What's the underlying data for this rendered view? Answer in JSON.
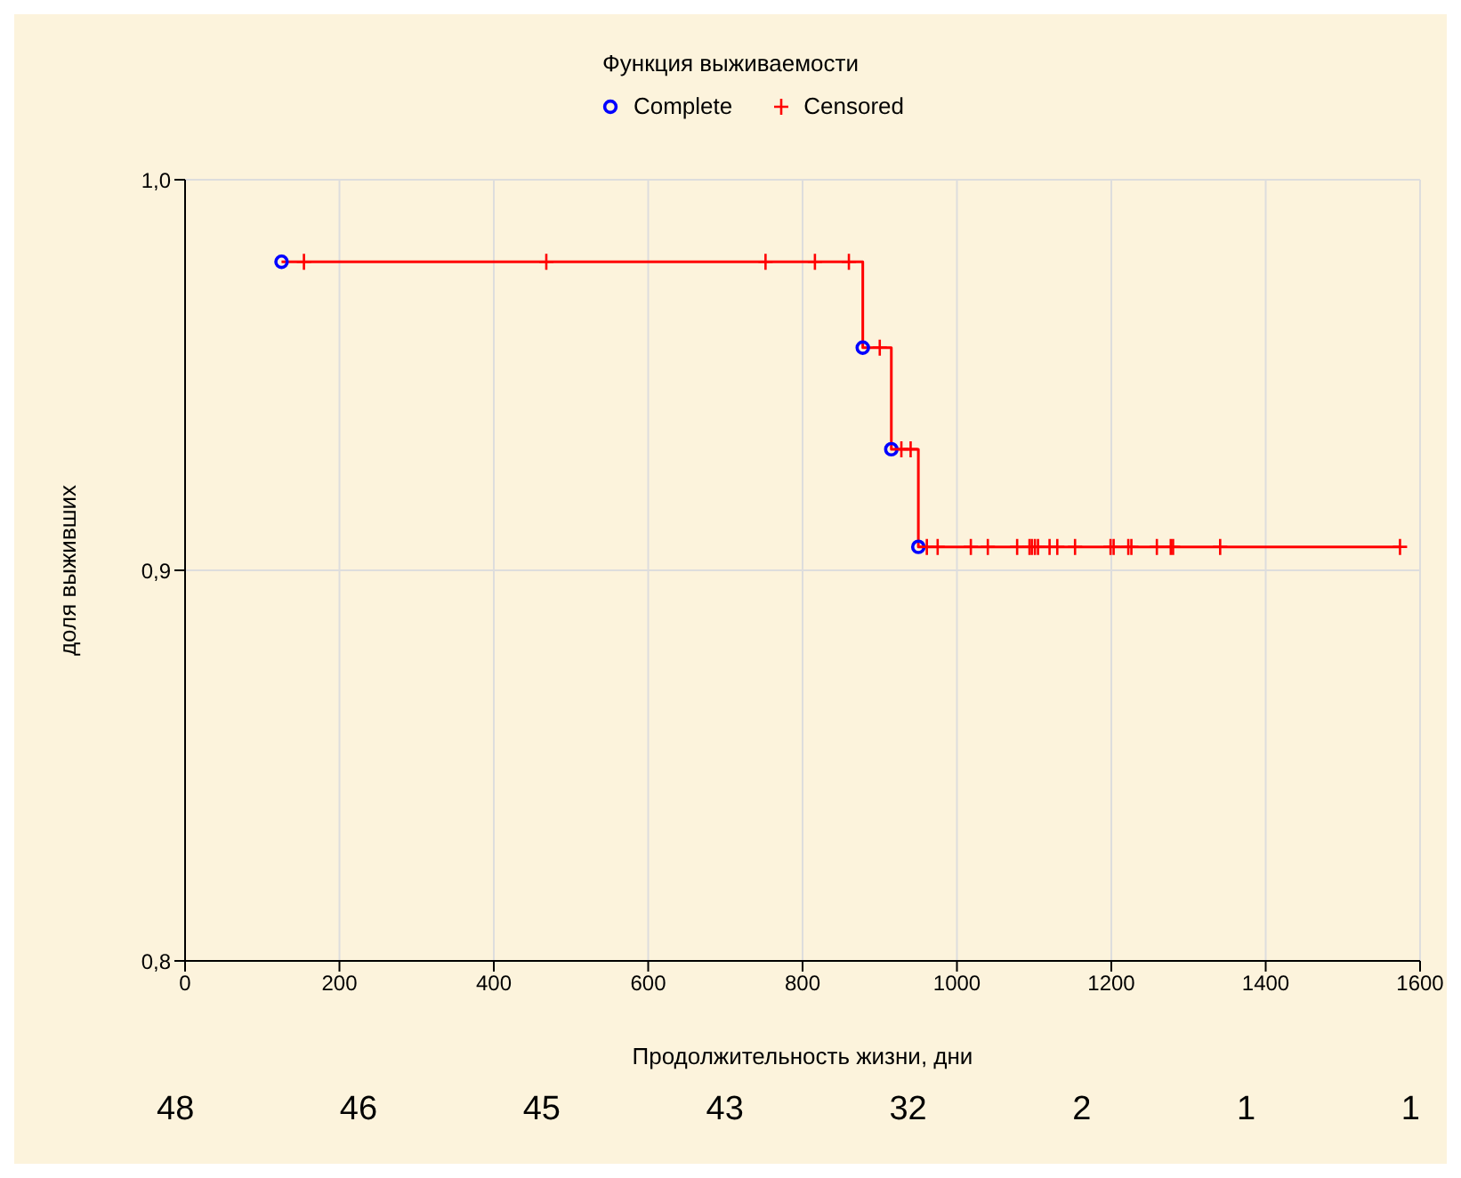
{
  "chart_data": {
    "type": "scatter",
    "title": "Функция выживаемости",
    "xlabel": "Продолжительность жизни, дни",
    "ylabel": "доля выживших",
    "xlim": [
      0,
      1600
    ],
    "xticks": [
      0,
      200,
      400,
      600,
      800,
      1000,
      1200,
      1400,
      1600
    ],
    "ylim": [
      0.8,
      1.0
    ],
    "yticks": [
      {
        "value": 0.8,
        "label": "0,8"
      },
      {
        "value": 0.9,
        "label": "0,9"
      },
      {
        "value": 1.0,
        "label": "1,0"
      }
    ],
    "grid": true,
    "legend": "top",
    "annotations": [
      "48",
      "46",
      "45",
      "43",
      "32",
      "2",
      "1",
      "1"
    ],
    "series": [
      {
        "type": "step",
        "color": "#ff0000",
        "marker": "none",
        "x": [
          125,
          878,
          915,
          950,
          1574
        ],
        "values": [
          0.979,
          0.957,
          0.931,
          0.906,
          0.906
        ]
      },
      {
        "name": "Complete",
        "color": "#0000ff",
        "marker": "circle",
        "x": [
          125,
          878,
          915,
          950
        ],
        "values": [
          0.979,
          0.957,
          0.931,
          0.906
        ]
      },
      {
        "name": "Censored",
        "color": "#ff0000",
        "marker": "cross",
        "x": [
          154,
          468,
          752,
          816,
          860,
          900,
          928,
          940,
          961,
          975,
          1018,
          1040,
          1078,
          1094,
          1097,
          1101,
          1105,
          1120,
          1130,
          1153,
          1199,
          1203,
          1222,
          1226,
          1259,
          1277,
          1280,
          1341,
          1574
        ],
        "values": [
          0.979,
          0.979,
          0.979,
          0.979,
          0.979,
          0.957,
          0.931,
          0.931,
          0.906,
          0.906,
          0.906,
          0.906,
          0.906,
          0.906,
          0.906,
          0.906,
          0.906,
          0.906,
          0.906,
          0.906,
          0.906,
          0.906,
          0.906,
          0.906,
          0.906,
          0.906,
          0.906,
          0.906,
          0.906
        ]
      }
    ]
  }
}
